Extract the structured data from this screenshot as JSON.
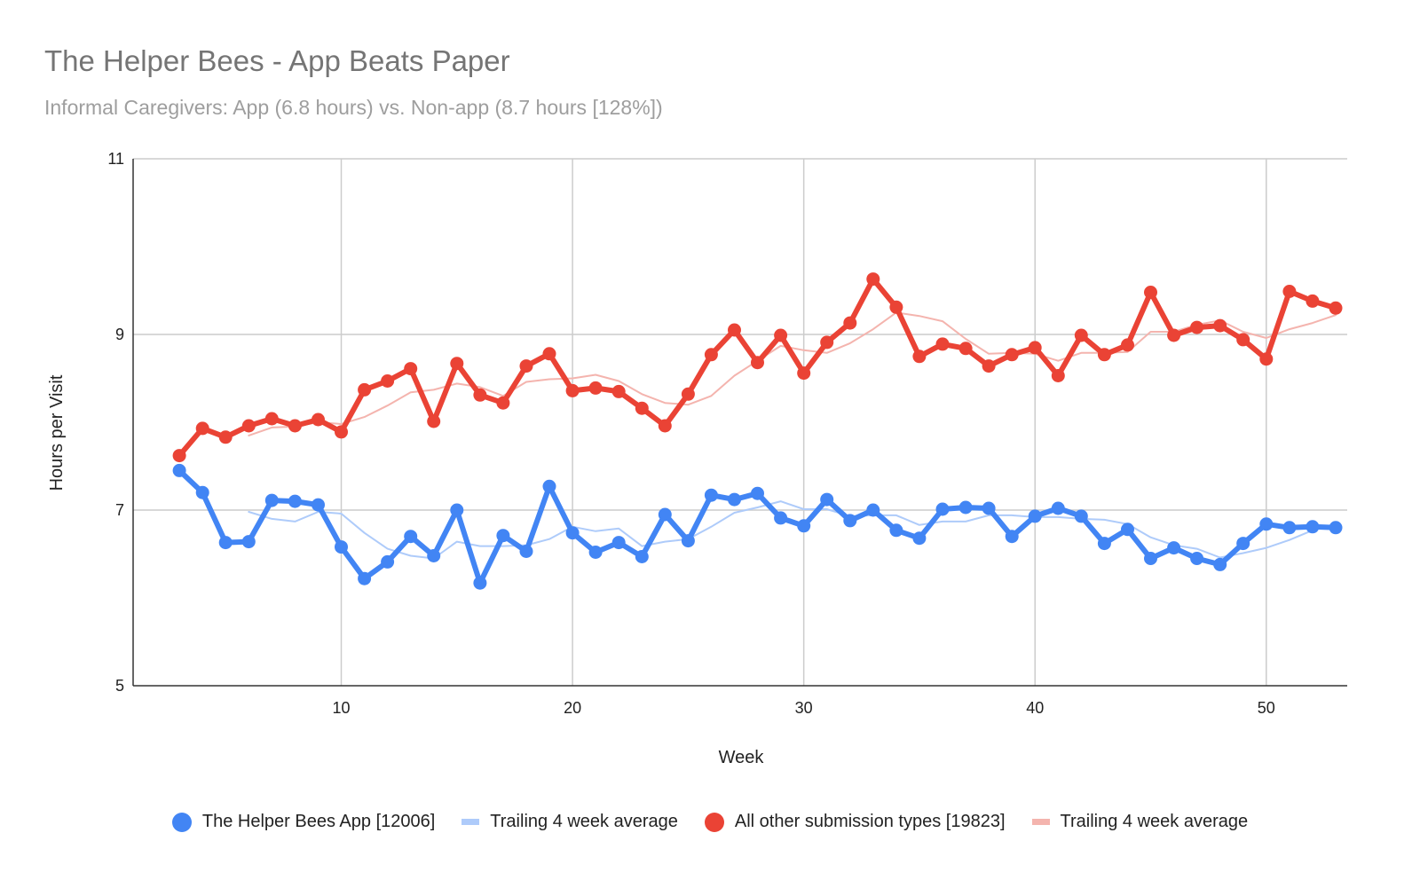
{
  "chart_data": {
    "type": "line",
    "title": "The Helper Bees - App Beats Paper",
    "subtitle": "Informal Caregivers: App (6.8 hours) vs. Non-app (8.7 hours [128%])",
    "xlabel": "Week",
    "ylabel": "Hours per Visit",
    "xlim": [
      1,
      53.5
    ],
    "ylim": [
      5,
      11
    ],
    "xticks": [
      "10",
      "20",
      "30",
      "40",
      "50"
    ],
    "yticks": [
      "5",
      "7",
      "9",
      "11"
    ],
    "grid": true,
    "legend_position": "bottom",
    "x": [
      3,
      4,
      5,
      6,
      7,
      8,
      9,
      10,
      11,
      12,
      13,
      14,
      15,
      16,
      17,
      18,
      19,
      20,
      21,
      22,
      23,
      24,
      25,
      26,
      27,
      28,
      29,
      30,
      31,
      32,
      33,
      34,
      35,
      36,
      37,
      38,
      39,
      40,
      41,
      42,
      43,
      44,
      45,
      46,
      47,
      48,
      49,
      50,
      51,
      52,
      53
    ],
    "series": [
      {
        "name": "The Helper Bees App [12006]",
        "color": "#4285f4",
        "style": "line-markers",
        "values": [
          7.45,
          7.2,
          6.63,
          6.64,
          7.11,
          7.1,
          7.06,
          6.58,
          6.22,
          6.41,
          6.7,
          6.48,
          7.0,
          6.17,
          6.71,
          6.53,
          7.27,
          6.74,
          6.52,
          6.63,
          6.47,
          6.95,
          6.65,
          7.17,
          7.12,
          7.19,
          6.91,
          6.82,
          7.12,
          6.88,
          7.0,
          6.77,
          6.68,
          7.01,
          7.03,
          7.02,
          6.7,
          6.93,
          7.02,
          6.93,
          6.62,
          6.78,
          6.45,
          6.57,
          6.45,
          6.38,
          6.62,
          6.84,
          6.8,
          6.81,
          6.8
        ]
      },
      {
        "name": "Trailing 4 week average",
        "color": "#aecbfa",
        "style": "line",
        "values": [
          null,
          null,
          null,
          6.98,
          6.9,
          6.87,
          6.98,
          6.96,
          6.74,
          6.56,
          6.48,
          6.45,
          6.64,
          6.59,
          6.59,
          6.6,
          6.67,
          6.81,
          6.76,
          6.79,
          6.59,
          6.64,
          6.67,
          6.81,
          6.97,
          7.03,
          7.1,
          7.01,
          7.01,
          6.93,
          6.94,
          6.94,
          6.83,
          6.87,
          6.87,
          6.94,
          6.94,
          6.92,
          6.92,
          6.9,
          6.89,
          6.84,
          6.69,
          6.6,
          6.56,
          6.46,
          6.51,
          6.57,
          6.66,
          6.77,
          6.84
        ]
      },
      {
        "name": "All other submission types [19823]",
        "color": "#ea4335",
        "style": "line-markers",
        "values": [
          7.62,
          7.93,
          7.83,
          7.96,
          8.04,
          7.96,
          8.03,
          7.89,
          8.37,
          8.47,
          8.61,
          8.01,
          8.67,
          8.31,
          8.22,
          8.64,
          8.78,
          8.36,
          8.39,
          8.35,
          8.16,
          7.96,
          8.32,
          8.77,
          9.05,
          8.68,
          8.99,
          8.56,
          8.91,
          9.13,
          9.63,
          9.31,
          8.75,
          8.89,
          8.84,
          8.64,
          8.77,
          8.85,
          8.53,
          8.99,
          8.77,
          8.88,
          9.48,
          8.99,
          9.08,
          9.1,
          8.94,
          8.72,
          9.49,
          9.38,
          9.3
        ]
      },
      {
        "name": "Trailing 4 week average",
        "color": "#f4b4ae",
        "style": "line",
        "values": [
          null,
          null,
          null,
          7.85,
          7.94,
          7.95,
          8.0,
          7.98,
          8.06,
          8.19,
          8.34,
          8.37,
          8.44,
          8.4,
          8.3,
          8.46,
          8.49,
          8.5,
          8.54,
          8.47,
          8.32,
          8.22,
          8.2,
          8.3,
          8.53,
          8.7,
          8.87,
          8.82,
          8.79,
          8.9,
          9.06,
          9.25,
          9.21,
          9.15,
          8.95,
          8.78,
          8.79,
          8.78,
          8.7,
          8.79,
          8.79,
          8.8,
          9.03,
          9.03,
          9.11,
          9.16,
          9.03,
          8.96,
          9.06,
          9.13,
          9.22
        ]
      }
    ]
  }
}
